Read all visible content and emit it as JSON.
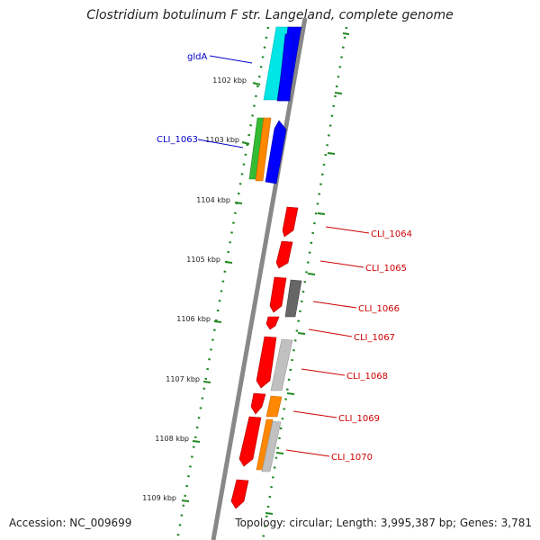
{
  "title": "Clostridium botulinum F str. Langeland, complete genome",
  "footer": {
    "accession": "Accession: NC_009699",
    "summary": "Topology: circular; Length: 3,995,387 bp; Genes: 3,781"
  },
  "colors": {
    "red": "#ff0000",
    "blue": "#0000ff",
    "cyan": "#00e5e5",
    "green": "#33bb33",
    "orange": "#ff8800",
    "dark_gray": "#666666",
    "light_gray": "#c0c0c0",
    "backbone": "#888888",
    "tick_green": "#228822",
    "label_blue": "#0000cc",
    "label_red": "#cc0000"
  },
  "ticks": [
    "1102 kbp",
    "1103 kbp",
    "1104 kbp",
    "1105 kbp",
    "1106 kbp",
    "1107 kbp",
    "1108 kbp",
    "1109 kbp"
  ],
  "gene_labels": [
    {
      "text": "gldA",
      "color": "label_blue"
    },
    {
      "text": "CLI_1063",
      "color": "label_blue"
    },
    {
      "text": "CLI_1064",
      "color": "label_red"
    },
    {
      "text": "CLI_1065",
      "color": "label_red"
    },
    {
      "text": "CLI_1066",
      "color": "label_red"
    },
    {
      "text": "CLI_1067",
      "color": "label_red"
    },
    {
      "text": "CLI_1068",
      "color": "label_red"
    },
    {
      "text": "CLI_1069",
      "color": "label_red"
    },
    {
      "text": "CLI_1070",
      "color": "label_red"
    }
  ]
}
